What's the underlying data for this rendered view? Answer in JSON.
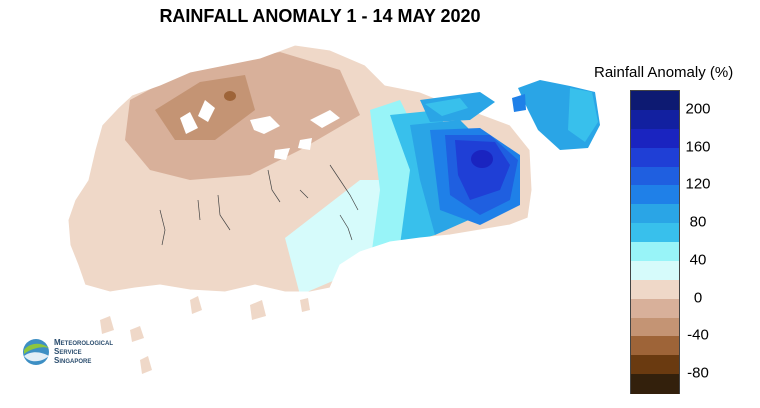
{
  "title": "RAINFALL ANOMALY 1 - 14 MAY 2020",
  "legend": {
    "title": "Rainfall Anomaly (%)",
    "labels": [
      "200",
      "160",
      "120",
      "80",
      "40",
      "0",
      "-40",
      "-80"
    ],
    "colors": [
      "#0d1a72",
      "#1220a0",
      "#1a24c0",
      "#1f3fd6",
      "#1f5fe0",
      "#1f80e8",
      "#2aa5e6",
      "#38c0ec",
      "#98f4f8",
      "#d6fbfb",
      "#efd8c8",
      "#d8b09a",
      "#c49474",
      "#9e6438",
      "#6a3a10",
      "#33200c"
    ]
  },
  "logo": {
    "line1": "Meteorological",
    "line2": "Service",
    "line3": "Singapore"
  }
}
